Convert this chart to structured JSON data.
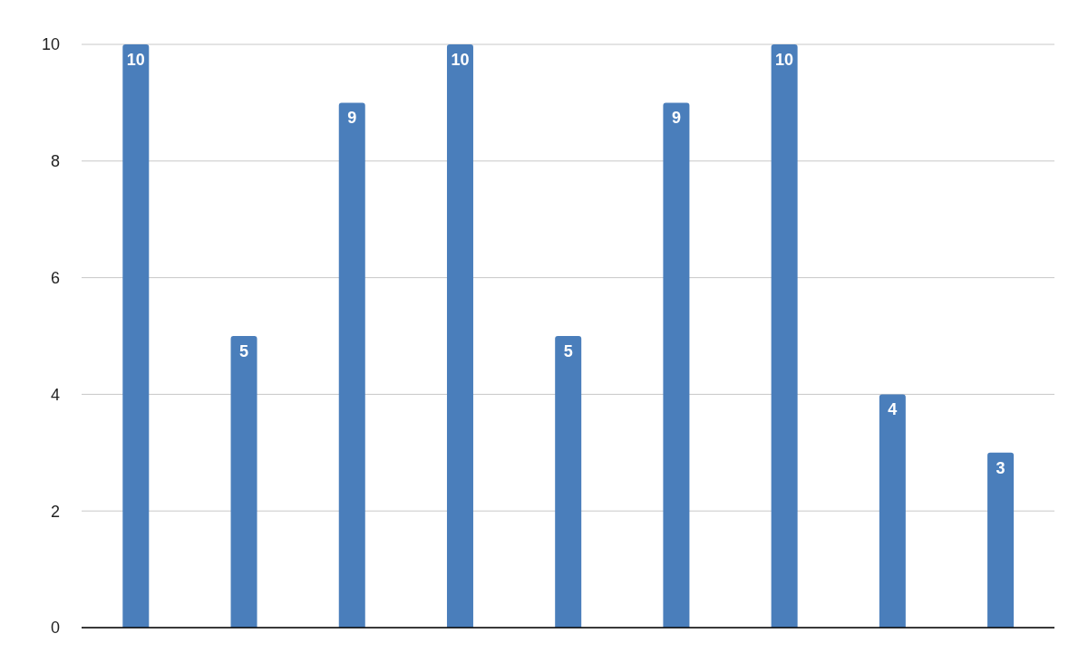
{
  "chart_data": {
    "type": "bar",
    "categories": [
      null,
      null,
      null,
      null,
      null,
      null,
      null,
      null,
      null
    ],
    "values": [
      10,
      5,
      9,
      10,
      5,
      9,
      10,
      4,
      3
    ],
    "color": "#4a7ebb",
    "ylim": [
      0,
      10
    ],
    "yticks": [
      0,
      2,
      4,
      6,
      8,
      10
    ],
    "grid": "y",
    "data_labels": true,
    "tick_labels": "y"
  }
}
